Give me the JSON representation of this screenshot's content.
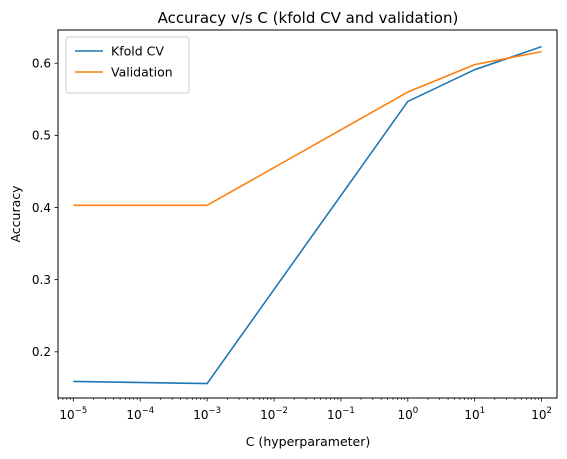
{
  "chart_data": {
    "type": "line",
    "title": "Accuracy v/s C (kfold CV and validation)",
    "xlabel": "C (hyperparameter)",
    "ylabel": "Accuracy",
    "x_scale": "log",
    "x": [
      1e-05,
      0.001,
      1,
      10,
      100
    ],
    "xlim": [
      5.9e-06,
      170
    ],
    "ylim": [
      0.136,
      0.646
    ],
    "x_ticks": [
      {
        "value": 1e-05,
        "base": "10",
        "exp": "−5"
      },
      {
        "value": 0.0001,
        "base": "10",
        "exp": "−4"
      },
      {
        "value": 0.001,
        "base": "10",
        "exp": "−3"
      },
      {
        "value": 0.01,
        "base": "10",
        "exp": "−2"
      },
      {
        "value": 0.1,
        "base": "10",
        "exp": "−1"
      },
      {
        "value": 1,
        "base": "10",
        "exp": "0"
      },
      {
        "value": 10,
        "base": "10",
        "exp": "1"
      },
      {
        "value": 100,
        "base": "10",
        "exp": "2"
      }
    ],
    "y_ticks": [
      {
        "value": 0.2,
        "label": "0.2"
      },
      {
        "value": 0.3,
        "label": "0.3"
      },
      {
        "value": 0.4,
        "label": "0.4"
      },
      {
        "value": 0.5,
        "label": "0.5"
      },
      {
        "value": 0.6,
        "label": "0.6"
      }
    ],
    "series": [
      {
        "name": "Kfold CV",
        "color": "#1f77b4",
        "values": [
          0.159,
          0.156,
          0.547,
          0.591,
          0.623
        ]
      },
      {
        "name": "Validation",
        "color": "#ff7f0e",
        "values": [
          0.403,
          0.403,
          0.56,
          0.598,
          0.616
        ]
      }
    ],
    "grid": false,
    "legend": "upper-left"
  }
}
